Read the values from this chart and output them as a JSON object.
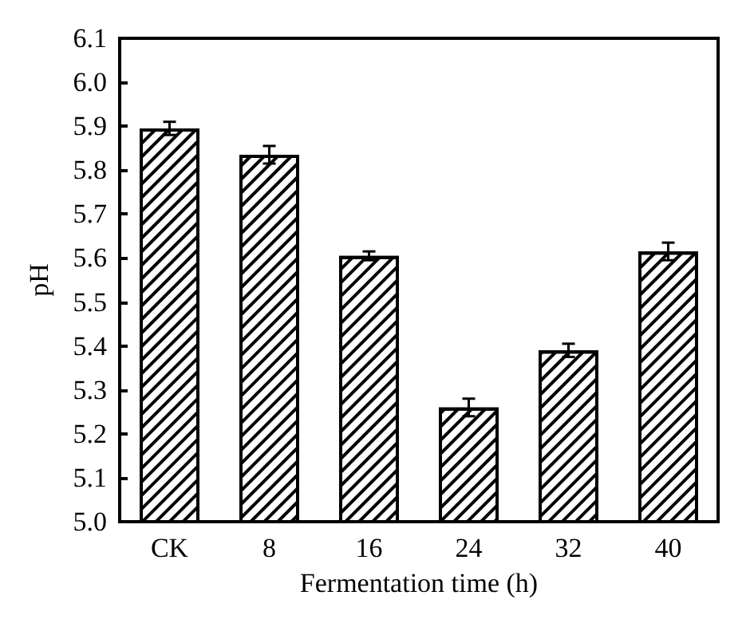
{
  "chart_data": {
    "type": "bar",
    "xlabel": "Fermentation time (h)",
    "ylabel": "pH",
    "categories": [
      "CK",
      "8",
      "16",
      "24",
      "32",
      "40"
    ],
    "values": [
      5.895,
      5.835,
      5.605,
      5.26,
      5.39,
      5.615
    ],
    "errors": [
      0.015,
      0.02,
      0.01,
      0.02,
      0.015,
      0.02
    ],
    "color": "#000000",
    "ylim": [
      5.0,
      6.1
    ],
    "yticks": [
      {
        "value": 5,
        "label": "5.0"
      },
      5.1,
      5.2,
      5.3,
      5.4,
      5.5,
      5.6,
      5.7,
      5.8,
      5.9,
      {
        "value": 6,
        "label": "6.0"
      },
      6.1
    ],
    "grid": false
  }
}
